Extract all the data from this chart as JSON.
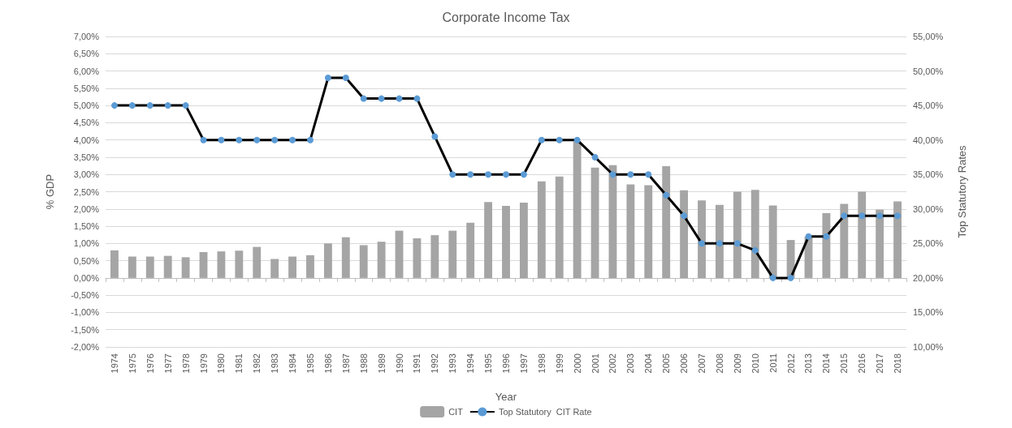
{
  "chart_data": {
    "type": "bar",
    "title": "Corporate Income Tax",
    "xlabel": "Year",
    "ylabel": "% GDP",
    "y2label": "Top Statutory Rates",
    "categories": [
      "1974",
      "1975",
      "1976",
      "1977",
      "1978",
      "1979",
      "1980",
      "1981",
      "1982",
      "1983",
      "1984",
      "1985",
      "1986",
      "1987",
      "1988",
      "1989",
      "1990",
      "1991",
      "1992",
      "1993",
      "1994",
      "1995",
      "1996",
      "1997",
      "1998",
      "1999",
      "2000",
      "2001",
      "2002",
      "2003",
      "2004",
      "2005",
      "2006",
      "2007",
      "2008",
      "2009",
      "2010",
      "2011",
      "2012",
      "2013",
      "2014",
      "2015",
      "2016",
      "2017",
      "2018"
    ],
    "series": [
      {
        "name": "CIT",
        "color": "#a5a5a5",
        "values": [
          0.8,
          0.62,
          0.62,
          0.64,
          0.6,
          0.75,
          0.77,
          0.79,
          0.9,
          0.55,
          0.62,
          0.66,
          1.0,
          1.18,
          0.95,
          1.05,
          1.37,
          1.15,
          1.24,
          1.37,
          1.6,
          2.2,
          2.09,
          2.18,
          2.8,
          2.94,
          3.95,
          3.2,
          3.27,
          2.71,
          2.69,
          3.24,
          2.54,
          2.25,
          2.12,
          2.5,
          2.55,
          2.1,
          1.1,
          1.2,
          1.88,
          2.15,
          2.5,
          1.98,
          2.22
        ]
      },
      {
        "name": "Top Statutory  CIT Rate",
        "type": "line",
        "axis": "y2",
        "color": "#000000",
        "marker": "circle",
        "values": [
          45,
          45,
          45,
          45,
          45,
          40,
          40,
          40,
          40,
          40,
          40,
          40,
          49,
          49,
          46,
          46,
          46,
          46,
          40.5,
          35,
          35,
          35,
          35,
          35,
          40,
          40,
          40,
          37.5,
          35,
          35,
          35,
          32,
          29,
          25,
          25,
          25,
          24,
          20,
          20,
          26,
          26,
          29,
          29,
          29,
          29
        ]
      }
    ],
    "ylim": [
      -2,
      7
    ],
    "yticks": [
      {
        "value": -2,
        "label": "-2,00%"
      },
      {
        "value": -1.5,
        "label": "-1,50%"
      },
      {
        "value": -1,
        "label": "-1,00%"
      },
      {
        "value": -0.5,
        "label": "-0,50%"
      },
      {
        "value": 0,
        "label": "0,00%"
      },
      {
        "value": 0.5,
        "label": "0,50%"
      },
      {
        "value": 1,
        "label": "1,00%"
      },
      {
        "value": 1.5,
        "label": "1,50%"
      },
      {
        "value": 2,
        "label": "2,00%"
      },
      {
        "value": 2.5,
        "label": "2,50%"
      },
      {
        "value": 3,
        "label": "3,00%"
      },
      {
        "value": 3.5,
        "label": "3,50%"
      },
      {
        "value": 4,
        "label": "4,00%"
      },
      {
        "value": 4.5,
        "label": "4,50%"
      },
      {
        "value": 5,
        "label": "5,00%"
      },
      {
        "value": 5.5,
        "label": "5,50%"
      },
      {
        "value": 6,
        "label": "6,00%"
      },
      {
        "value": 6.5,
        "label": "6,50%"
      },
      {
        "value": 7,
        "label": "7,00%"
      }
    ],
    "y2lim": [
      10,
      55
    ],
    "y2ticks": [
      {
        "value": 10,
        "label": "10,00%"
      },
      {
        "value": 15,
        "label": "15,00%"
      },
      {
        "value": 20,
        "label": "20,00%"
      },
      {
        "value": 25,
        "label": "25,00%"
      },
      {
        "value": 30,
        "label": "30,00%"
      },
      {
        "value": 35,
        "label": "35,00%"
      },
      {
        "value": 40,
        "label": "40,00%"
      },
      {
        "value": 45,
        "label": "45,00%"
      },
      {
        "value": 50,
        "label": "50,00%"
      },
      {
        "value": 55,
        "label": "55,00%"
      }
    ],
    "grid": "y",
    "legend": "bottom"
  }
}
